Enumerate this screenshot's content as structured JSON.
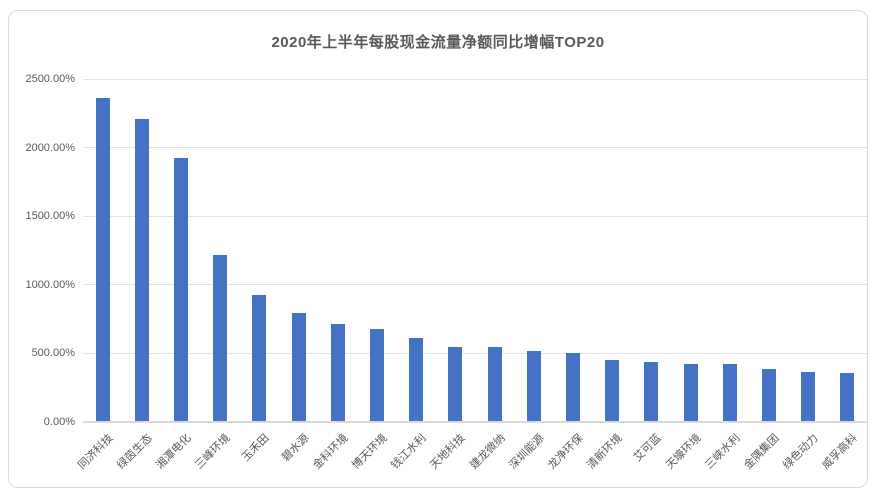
{
  "chart_data": {
    "type": "bar",
    "title": "2020年上半年每股现金流量净额同比增幅TOP20",
    "categories": [
      "同济科技",
      "绿茵生态",
      "湘潭电化",
      "三峰环境",
      "玉禾田",
      "碧水源",
      "金科环境",
      "博天环境",
      "钱江水利",
      "天地科技",
      "建龙微纳",
      "深圳能源",
      "龙净环保",
      "清新环境",
      "艾可蓝",
      "天壕环境",
      "三峡水利",
      "金隅集团",
      "绿色动力",
      "威孚高科"
    ],
    "values": [
      2365,
      2205,
      1925,
      1220,
      925,
      795,
      715,
      675,
      615,
      550,
      545,
      520,
      505,
      455,
      435,
      425,
      420,
      390,
      365,
      355
    ],
    "value_unit": "%",
    "xlabel": "",
    "ylabel": "",
    "ylim": [
      0,
      2500
    ],
    "ytick_step": 500,
    "ytick_labels": [
      "0.00%",
      "500.00%",
      "1000.00%",
      "1500.00%",
      "2000.00%",
      "2500.00%"
    ],
    "grid": true,
    "legend": false,
    "bar_color": "#4472C4"
  },
  "colors": {
    "bar": "#4472C4",
    "grid": "#E2E2E2",
    "axis": "#D9D9D9",
    "title_text": "#595959",
    "tick_text": "#595959",
    "frame_border": "#D9D9D9",
    "background": "#FFFFFF"
  }
}
